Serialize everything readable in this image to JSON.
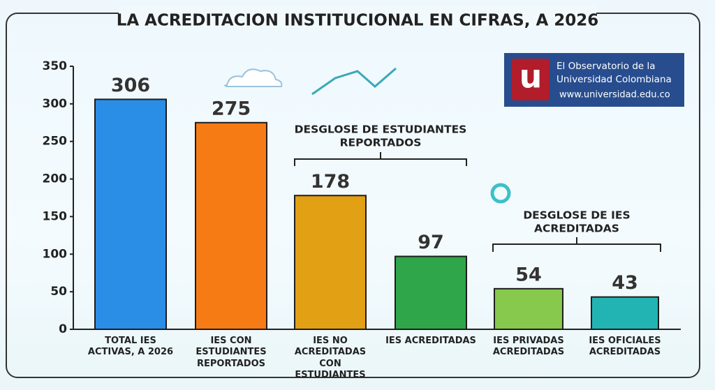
{
  "chart_data": {
    "type": "bar",
    "title": "LA ACREDITACION INSTITUCIONAL EN CIFRAS, A 2026",
    "categories": [
      "TOTAL IES ACTIVAS, A 2026",
      "IES CON ESTUDIANTES REPORTADOS",
      "IES NO ACREDITADAS CON ESTUDIANTES",
      "IES ACREDITADAS",
      "IES PRIVADAS ACREDITADAS",
      "IES OFICIALES ACREDITADAS"
    ],
    "values": [
      306,
      275,
      178,
      97,
      54,
      43
    ],
    "colors": [
      "#2b8ee6",
      "#f77b14",
      "#e2a015",
      "#2fa64a",
      "#86c94c",
      "#22b4b2"
    ],
    "ylim": [
      0,
      350
    ],
    "yticks": [
      0,
      50,
      100,
      150,
      200,
      250,
      300,
      350
    ],
    "grid": false,
    "annotations": [
      {
        "lines": [
          "DESGLOSE DE ESTUDIANTES",
          "REPORTADOS"
        ]
      },
      {
        "lines": [
          "DESGLOSE DE IES",
          "ACREDITADAS"
        ]
      }
    ]
  },
  "logo": {
    "letter": "u",
    "name_lines": [
      "El Observatorio de la",
      "Universidad Colombiana"
    ],
    "url": "www.universidad.edu.co"
  }
}
